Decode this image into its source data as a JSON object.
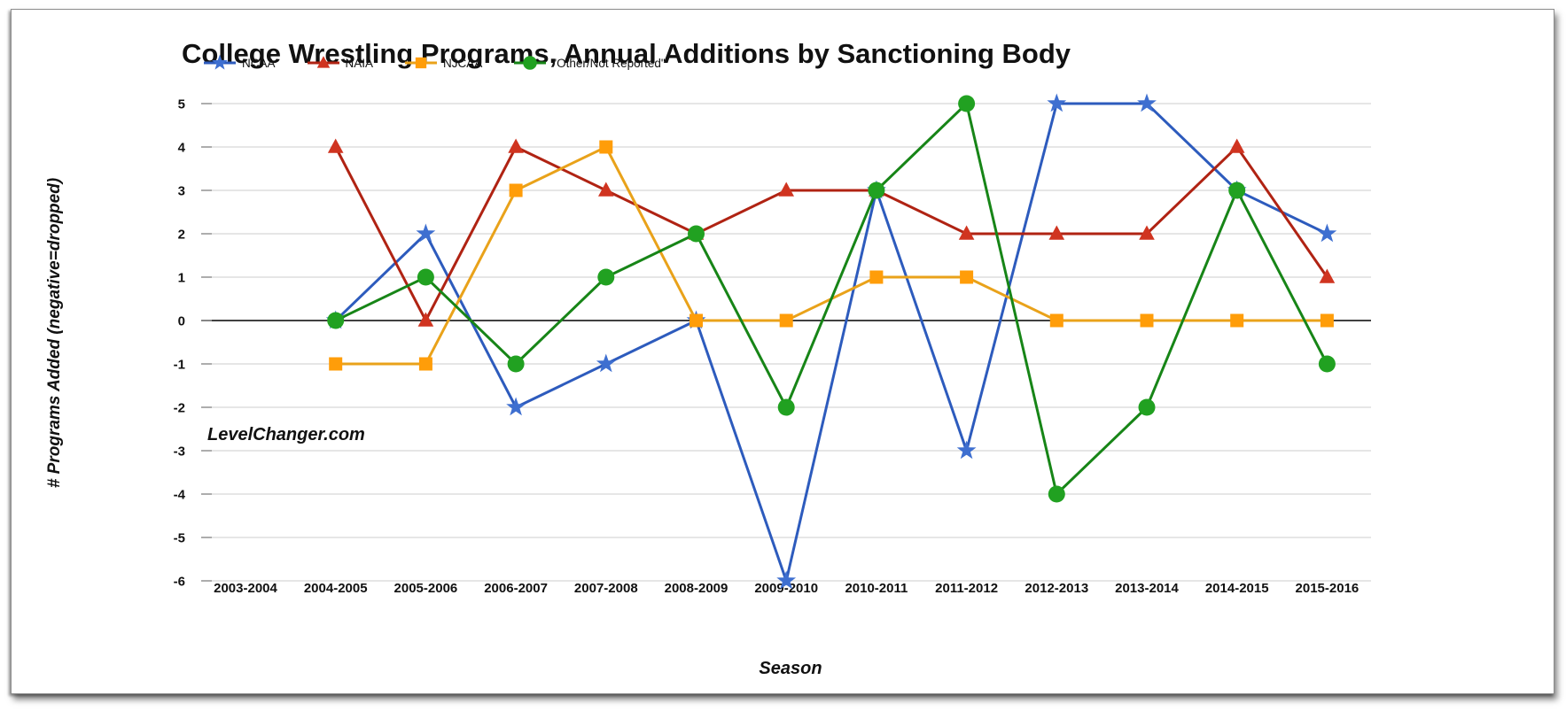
{
  "page": {
    "watermark": "LevelChanger.com"
  },
  "chart_data": {
    "type": "line",
    "title": "College Wrestling Programs, Annual Additions by Sanctioning Body",
    "xlabel": "Season",
    "ylabel": "# Programs Added (negative=dropped)",
    "ylim": [
      -6,
      5
    ],
    "ytick_step": 1,
    "grid": true,
    "zero_axis_color": "#000000",
    "gridline_color": "#cccccc",
    "legend_position": "top-left",
    "categories": [
      "2003-2004",
      "2004-2005",
      "2005-2006",
      "2006-2007",
      "2007-2008",
      "2008-2009",
      "2009-2010",
      "2010-2011",
      "2011-2012",
      "2012-2013",
      "2013-2014",
      "2014-2015",
      "2015-2016"
    ],
    "series": [
      {
        "id": "ncaa",
        "name": "NCAA",
        "marker": "star",
        "line_color": "#2d5bbd",
        "marker_color": "#3e6fd0",
        "values": [
          null,
          0,
          2,
          -2,
          -1,
          0,
          -6,
          3,
          -3,
          5,
          5,
          3,
          2
        ]
      },
      {
        "id": "naia",
        "name": "NAIA",
        "marker": "triangle",
        "line_color": "#b02313",
        "marker_color": "#d03420",
        "values": [
          null,
          4,
          0,
          4,
          3,
          2,
          3,
          3,
          2,
          2,
          2,
          4,
          1
        ]
      },
      {
        "id": "njcaa",
        "name": "NJCAA",
        "marker": "square",
        "line_color": "#e9a21a",
        "marker_color": "#ff9d09",
        "values": [
          null,
          -1,
          -1,
          3,
          4,
          0,
          0,
          1,
          1,
          0,
          0,
          0,
          0
        ]
      },
      {
        "id": "other",
        "name": "\"Other/Not Reported\"",
        "marker": "circle",
        "line_color": "#178517",
        "marker_color": "#21a121",
        "values": [
          null,
          0,
          1,
          -1,
          1,
          2,
          -2,
          3,
          5,
          -4,
          -2,
          3,
          -1
        ]
      }
    ]
  }
}
